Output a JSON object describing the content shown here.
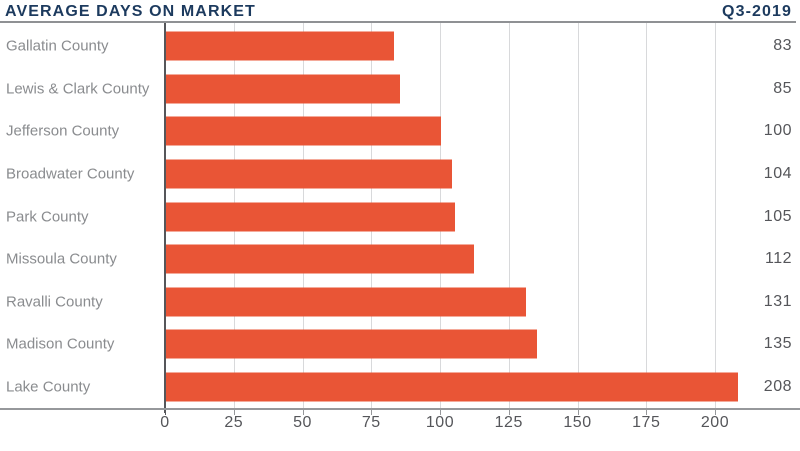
{
  "header": {
    "title": "AVERAGE DAYS ON MARKET",
    "period": "Q3-2019"
  },
  "colors": {
    "title_navy": "#1C3A5E",
    "bar_orange": "#E95536",
    "category_label_gray": "#8A8C8F",
    "value_gray": "#55565A",
    "gridline_gray": "#D8D9DB",
    "axis_gray": "#96989B"
  },
  "chart_data": {
    "type": "bar",
    "orientation": "horizontal",
    "title": "AVERAGE DAYS ON MARKET",
    "subtitle": "Q3-2019",
    "categories": [
      "Gallatin County",
      "Lewis & Clark County",
      "Jefferson County",
      "Broadwater County",
      "Park County",
      "Missoula County",
      "Ravalli County",
      "Madison County",
      "Lake County"
    ],
    "values": [
      83,
      85,
      100,
      104,
      105,
      112,
      131,
      135,
      208
    ],
    "xlabel": "",
    "ylabel": "",
    "xlim": [
      0,
      228
    ],
    "xticks": [
      0,
      25,
      50,
      75,
      100,
      125,
      150,
      175,
      200
    ],
    "grid": true,
    "legend_position": "none",
    "value_labels": "right-aligned outside bars"
  }
}
